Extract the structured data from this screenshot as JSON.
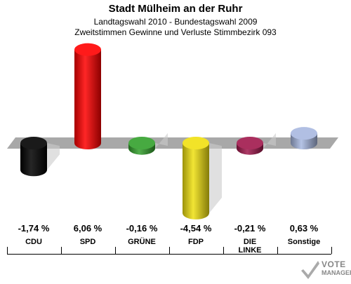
{
  "header": {
    "title": "Stadt Mülheim an der Ruhr",
    "subtitle1": "Landtagswahl 2010 - Bundestagswahl 2009",
    "subtitle2": "Zweitstimmen Gewinne und Verluste Stimmbezirk 093"
  },
  "chart_data": {
    "type": "bar",
    "categories": [
      "CDU",
      "SPD",
      "GRÜNE",
      "FDP",
      "DIE LINKE",
      "Sonstige"
    ],
    "values": [
      -1.74,
      6.06,
      -0.16,
      -4.54,
      -0.21,
      0.63
    ],
    "value_labels": [
      "-1,74 %",
      "6,06 %",
      "-0,16 %",
      "-4,54 %",
      "-0,21 %",
      "0,63 %"
    ],
    "colors": [
      "#000000",
      "#ff0000",
      "#33a02c",
      "#f0e010",
      "#a0184c",
      "#a8b8e0"
    ],
    "ylim": [
      -6,
      7
    ]
  },
  "logo": {
    "line1": "VOTE",
    "line2": "MANAGER"
  }
}
